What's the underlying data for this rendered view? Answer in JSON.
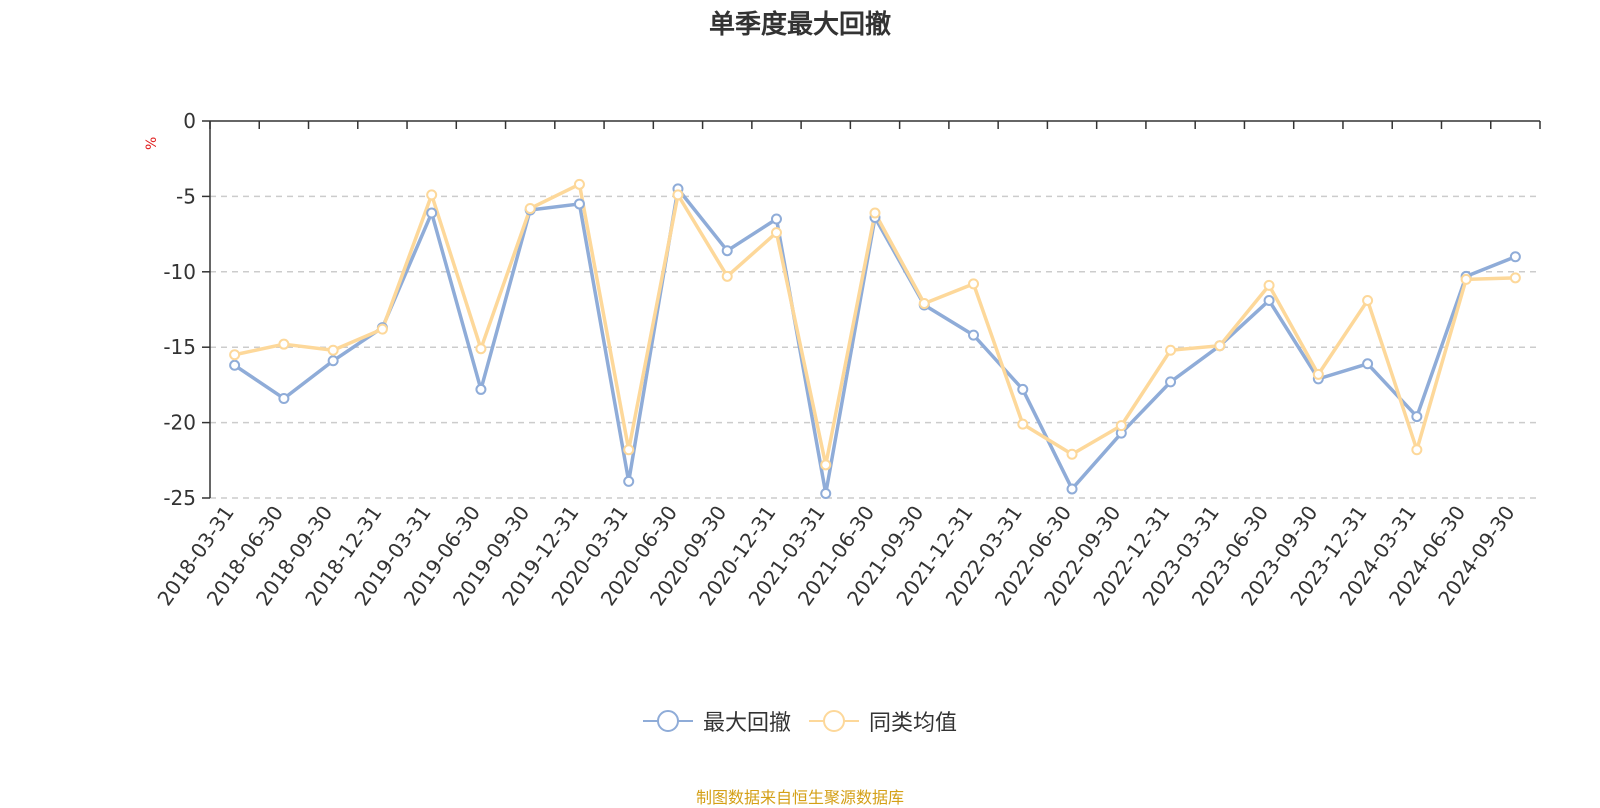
{
  "chart_data": {
    "type": "line",
    "title": "单季度最大回撤",
    "ylabel": "%",
    "ylim": [
      -25,
      0
    ],
    "yticks": [
      0,
      -5,
      -10,
      -15,
      -20,
      -25
    ],
    "grid": true,
    "legend_position": "bottom",
    "categories": [
      "2018-03-31",
      "2018-06-30",
      "2018-09-30",
      "2018-12-31",
      "2019-03-31",
      "2019-06-30",
      "2019-09-30",
      "2019-12-31",
      "2020-03-31",
      "2020-06-30",
      "2020-09-30",
      "2020-12-31",
      "2021-03-31",
      "2021-06-30",
      "2021-09-30",
      "2021-12-31",
      "2022-03-31",
      "2022-06-30",
      "2022-09-30",
      "2022-12-31",
      "2023-03-31",
      "2023-06-30",
      "2023-09-30",
      "2023-12-31",
      "2024-03-31",
      "2024-06-30",
      "2024-09-30"
    ],
    "series": [
      {
        "name": "最大回撤",
        "color": "#8facd8",
        "values": [
          -16.2,
          -18.4,
          -15.9,
          -13.7,
          -6.1,
          -17.8,
          -5.9,
          -5.5,
          -23.9,
          -4.5,
          -8.6,
          -6.5,
          -24.7,
          -6.4,
          -12.2,
          -14.2,
          -17.8,
          -24.4,
          -20.7,
          -17.3,
          -14.9,
          -11.9,
          -17.1,
          -16.1,
          -19.6,
          -10.3,
          -9.0
        ]
      },
      {
        "name": "同类均值",
        "color": "#fdd89a",
        "values": [
          -15.5,
          -14.8,
          -15.2,
          -13.8,
          -4.9,
          -15.1,
          -5.8,
          -4.2,
          -21.8,
          -4.9,
          -10.3,
          -7.4,
          -22.8,
          -6.1,
          -12.1,
          -10.8,
          -20.1,
          -22.1,
          -20.2,
          -15.2,
          -14.9,
          -10.9,
          -16.8,
          -11.9,
          -21.8,
          -10.5,
          -10.4
        ]
      }
    ]
  },
  "legend": {
    "items": [
      {
        "label": "最大回撤",
        "color": "#8facd8"
      },
      {
        "label": "同类均值",
        "color": "#fdd89a"
      }
    ]
  },
  "footer": {
    "source": "制图数据来自恒生聚源数据库"
  }
}
